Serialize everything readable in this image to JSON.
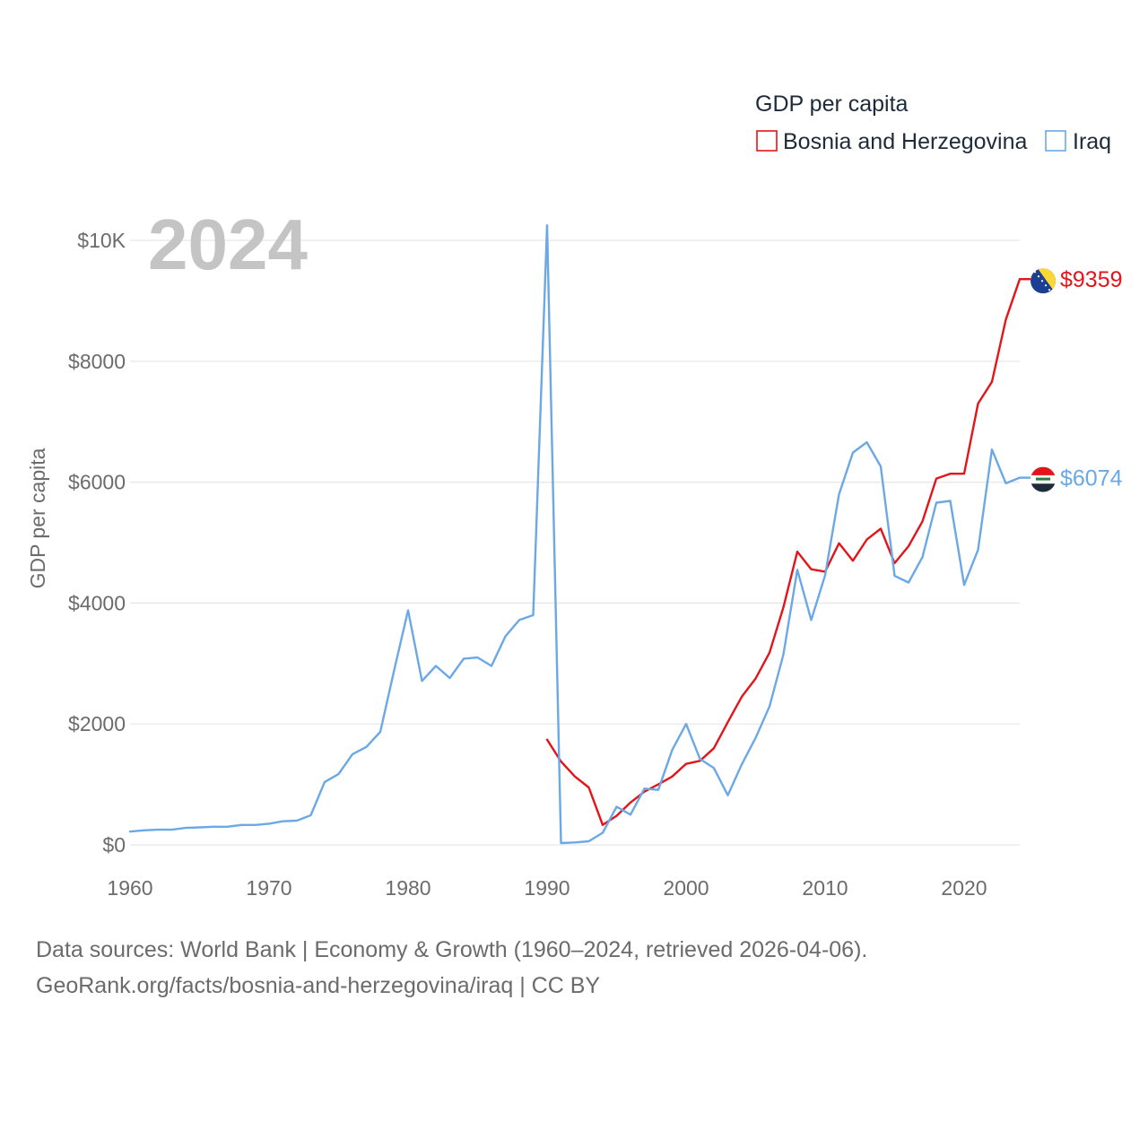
{
  "chart_data": {
    "type": "line",
    "year_label": "2024",
    "ylabel": "GDP per capita",
    "xlim": [
      1960,
      2024
    ],
    "ylim": [
      0,
      10000
    ],
    "x_ticks": [
      1960,
      1970,
      1980,
      1990,
      2000,
      2010,
      2020
    ],
    "x_tick_labels": [
      "1960",
      "1970",
      "1980",
      "1990",
      "2000",
      "2010",
      "2020"
    ],
    "y_ticks": [
      0,
      2000,
      4000,
      6000,
      8000,
      10000
    ],
    "y_tick_labels": [
      "$0",
      "$2000",
      "$4000",
      "$6000",
      "$8000",
      "$10K"
    ],
    "grid": true,
    "legend": {
      "title": "GDP per capita",
      "position": "top-right",
      "entries": [
        "Bosnia and Herzegovina",
        "Iraq"
      ]
    },
    "series": [
      {
        "name": "Bosnia and Herzegovina",
        "color": "#e3151a",
        "end_label": "$9359",
        "icon": "bosnia-flag-icon",
        "points": [
          [
            1990,
            1740
          ],
          [
            1991,
            1380
          ],
          [
            1992,
            1130
          ],
          [
            1993,
            950
          ],
          [
            1994,
            330
          ],
          [
            1995,
            480
          ],
          [
            1996,
            700
          ],
          [
            1997,
            880
          ],
          [
            1998,
            1000
          ],
          [
            1999,
            1130
          ],
          [
            2000,
            1340
          ],
          [
            2001,
            1390
          ],
          [
            2002,
            1600
          ],
          [
            2003,
            2030
          ],
          [
            2004,
            2450
          ],
          [
            2005,
            2750
          ],
          [
            2006,
            3180
          ],
          [
            2007,
            3930
          ],
          [
            2008,
            4850
          ],
          [
            2009,
            4560
          ],
          [
            2010,
            4520
          ],
          [
            2011,
            4990
          ],
          [
            2012,
            4700
          ],
          [
            2013,
            5050
          ],
          [
            2014,
            5230
          ],
          [
            2015,
            4660
          ],
          [
            2016,
            4940
          ],
          [
            2017,
            5350
          ],
          [
            2018,
            6060
          ],
          [
            2019,
            6140
          ],
          [
            2020,
            6140
          ],
          [
            2021,
            7300
          ],
          [
            2022,
            7660
          ],
          [
            2023,
            8690
          ],
          [
            2024,
            9359
          ]
        ]
      },
      {
        "name": "Iraq",
        "color": "#6aa8e6",
        "end_label": "$6074",
        "icon": "iraq-flag-icon",
        "points": [
          [
            1960,
            220
          ],
          [
            1961,
            240
          ],
          [
            1962,
            250
          ],
          [
            1963,
            250
          ],
          [
            1964,
            280
          ],
          [
            1965,
            290
          ],
          [
            1966,
            300
          ],
          [
            1967,
            300
          ],
          [
            1968,
            330
          ],
          [
            1969,
            330
          ],
          [
            1970,
            350
          ],
          [
            1971,
            390
          ],
          [
            1972,
            400
          ],
          [
            1973,
            490
          ],
          [
            1974,
            1040
          ],
          [
            1975,
            1170
          ],
          [
            1976,
            1500
          ],
          [
            1977,
            1620
          ],
          [
            1978,
            1870
          ],
          [
            1979,
            2890
          ],
          [
            1980,
            3880
          ],
          [
            1981,
            2710
          ],
          [
            1982,
            2960
          ],
          [
            1983,
            2760
          ],
          [
            1984,
            3080
          ],
          [
            1985,
            3100
          ],
          [
            1986,
            2960
          ],
          [
            1987,
            3450
          ],
          [
            1988,
            3720
          ],
          [
            1989,
            3800
          ],
          [
            1990,
            10250
          ],
          [
            1991,
            30
          ],
          [
            1992,
            40
          ],
          [
            1993,
            60
          ],
          [
            1994,
            200
          ],
          [
            1995,
            630
          ],
          [
            1996,
            500
          ],
          [
            1997,
            930
          ],
          [
            1998,
            910
          ],
          [
            1999,
            1570
          ],
          [
            2000,
            2000
          ],
          [
            2001,
            1420
          ],
          [
            2002,
            1270
          ],
          [
            2003,
            820
          ],
          [
            2004,
            1330
          ],
          [
            2005,
            1770
          ],
          [
            2006,
            2290
          ],
          [
            2007,
            3150
          ],
          [
            2008,
            4550
          ],
          [
            2009,
            3720
          ],
          [
            2010,
            4460
          ],
          [
            2011,
            5800
          ],
          [
            2012,
            6490
          ],
          [
            2013,
            6660
          ],
          [
            2014,
            6260
          ],
          [
            2015,
            4450
          ],
          [
            2016,
            4340
          ],
          [
            2017,
            4760
          ],
          [
            2018,
            5660
          ],
          [
            2019,
            5690
          ],
          [
            2020,
            4300
          ],
          [
            2021,
            4880
          ],
          [
            2022,
            6540
          ],
          [
            2023,
            5980
          ],
          [
            2024,
            6074
          ]
        ]
      }
    ]
  },
  "source": {
    "line1": "Data sources: World Bank | Economy & Growth (1960–2024, retrieved 2026-04-06).",
    "line2": "GeoRank.org/facts/bosnia-and-herzegovina/iraq | CC BY"
  }
}
